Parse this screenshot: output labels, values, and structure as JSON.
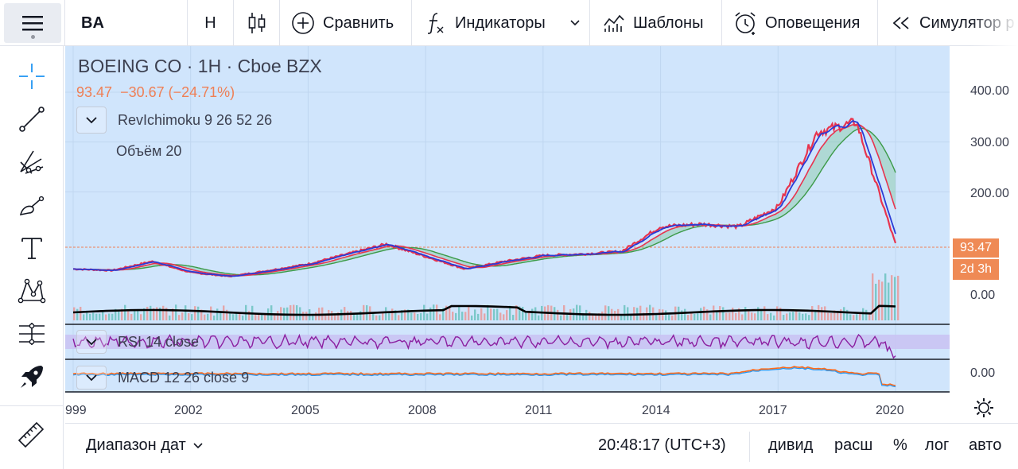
{
  "toolbar": {
    "symbol": "BA",
    "interval": "Н",
    "chart_type_icon": "candlestick-icon",
    "compare_label": "Сравнить",
    "indicators_label": "Индикаторы",
    "templates_label": "Шаблоны",
    "alerts_label": "Оповещения",
    "replay_label": "Симулятор р"
  },
  "left_tools": [
    "crosshair-icon",
    "trend-line-icon",
    "pitchfork-icon",
    "brush-icon",
    "text-icon",
    "pattern-icon",
    "prediction-icon",
    "rocket-icon",
    "ruler-icon"
  ],
  "chart": {
    "title": "BOEING CO · 1H · Cboe BZX",
    "price": "93.47",
    "change": "−30.67 (−24.71%)",
    "indicator_ichimoku": "RevIchimoku 9 26 52 26",
    "indicator_volume": "Объём 20",
    "indicator_rsi": "RSI 14 close",
    "indicator_macd": "MACD 12 26 close 9",
    "price_ticks": [
      "400.00",
      "300.00",
      "200.00",
      "0.00",
      "0.00"
    ],
    "last_price_badge": "93.47",
    "countdown_badge": "2d 3h",
    "years": [
      "999",
      "2002",
      "2005",
      "2008",
      "2011",
      "2014",
      "2017",
      "2020"
    ],
    "colors": {
      "background": "#d0e5fc",
      "price_line": "#e8344e",
      "fast_line": "#2a3bd6",
      "slow_line": "#3c9a48",
      "rsi": "#8b1fa0",
      "macd": "#ff6a1a",
      "badge": "#ef8a55"
    }
  },
  "chart_data": {
    "type": "line",
    "x": [
      1999,
      2000,
      2001,
      2002,
      2003,
      2004,
      2005,
      2006,
      2007,
      2008,
      2009,
      2010,
      2011,
      2012,
      2013,
      2014,
      2015,
      2016,
      2017,
      2018,
      2019,
      2020
    ],
    "series": [
      {
        "values": [
          45,
          42,
          60,
          38,
          30,
          42,
          55,
          75,
          95,
          70,
          45,
          60,
          72,
          75,
          80,
          130,
          135,
          130,
          170,
          320,
          340,
          95
        ]
      }
    ],
    "ylim": [
      0,
      450
    ]
  },
  "bottombar": {
    "date_range": "Диапазон дат",
    "clock": "20:48:17 (UTC+3)",
    "dividends": "дивид",
    "extended": "расш",
    "percent": "%",
    "log": "лог",
    "auto": "авто"
  }
}
